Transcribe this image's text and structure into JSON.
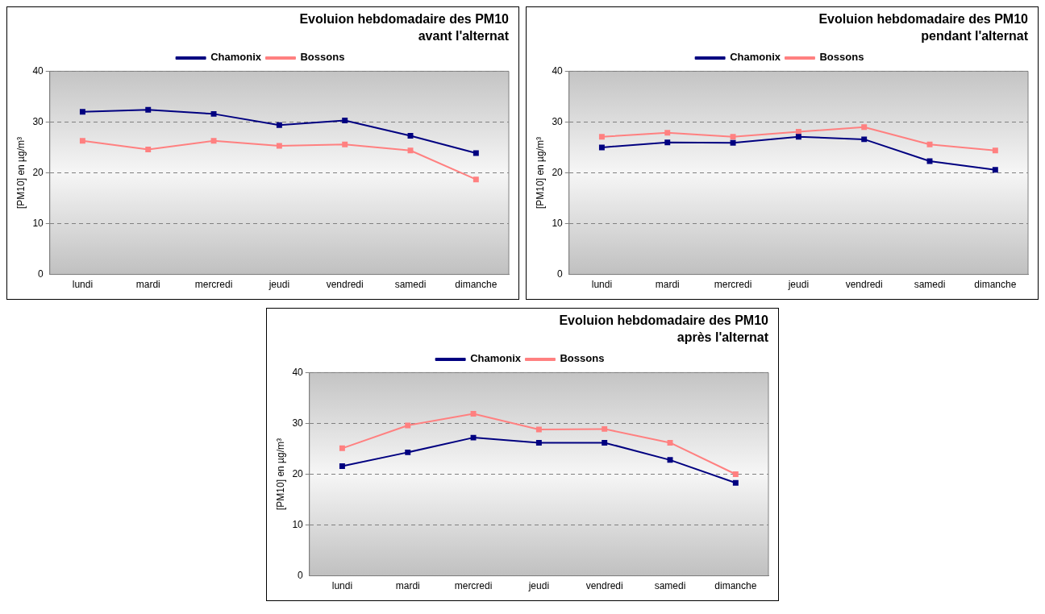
{
  "chart_data": [
    {
      "type": "line",
      "title": "Evoluion hebdomadaire des PM10",
      "subtitle": "avant l'alternat",
      "ylabel": "[PM10] en µg/m³",
      "categories": [
        "lundi",
        "mardi",
        "mercredi",
        "jeudi",
        "vendredi",
        "samedi",
        "dimanche"
      ],
      "ylim": [
        0,
        40
      ],
      "yticks": [
        0,
        10,
        20,
        30,
        40
      ],
      "grid": "y",
      "legend": "top",
      "marker": "square",
      "line_style": "solid",
      "series": [
        {
          "name": "Chamonix",
          "color": "#000080",
          "values": [
            32.0,
            32.4,
            31.6,
            29.4,
            30.3,
            27.3,
            23.9
          ]
        },
        {
          "name": "Bossons",
          "color": "#ff8080",
          "values": [
            26.3,
            24.6,
            26.3,
            25.3,
            25.6,
            24.4,
            18.7
          ]
        }
      ]
    },
    {
      "type": "line",
      "title": "Evoluion hebdomadaire des PM10",
      "subtitle": "pendant l'alternat",
      "ylabel": "[PM10] en µg/m³",
      "categories": [
        "lundi",
        "mardi",
        "mercredi",
        "jeudi",
        "vendredi",
        "samedi",
        "dimanche"
      ],
      "ylim": [
        0,
        40
      ],
      "yticks": [
        0,
        10,
        20,
        30,
        40
      ],
      "grid": "y",
      "legend": "top",
      "marker": "square",
      "line_style": "solid",
      "series": [
        {
          "name": "Chamonix",
          "color": "#000080",
          "values": [
            25.0,
            26.0,
            25.9,
            27.1,
            26.6,
            22.3,
            20.6
          ]
        },
        {
          "name": "Bossons",
          "color": "#ff8080",
          "values": [
            27.1,
            27.9,
            27.1,
            28.1,
            29.0,
            25.6,
            24.4
          ]
        }
      ]
    },
    {
      "type": "line",
      "title": "Evoluion hebdomadaire des PM10",
      "subtitle": "après l'alternat",
      "ylabel": "[PM10] en µg/m³",
      "categories": [
        "lundi",
        "mardi",
        "mercredi",
        "jeudi",
        "vendredi",
        "samedi",
        "dimanche"
      ],
      "ylim": [
        0,
        40
      ],
      "yticks": [
        0,
        10,
        20,
        30,
        40
      ],
      "grid": "y",
      "legend": "top",
      "marker": "square",
      "line_style": "solid",
      "series": [
        {
          "name": "Chamonix",
          "color": "#000080",
          "values": [
            21.6,
            24.3,
            27.2,
            26.2,
            26.2,
            22.8,
            18.3
          ]
        },
        {
          "name": "Bossons",
          "color": "#ff8080",
          "values": [
            25.1,
            29.6,
            31.9,
            28.8,
            28.9,
            26.2,
            20.0
          ]
        }
      ]
    }
  ]
}
